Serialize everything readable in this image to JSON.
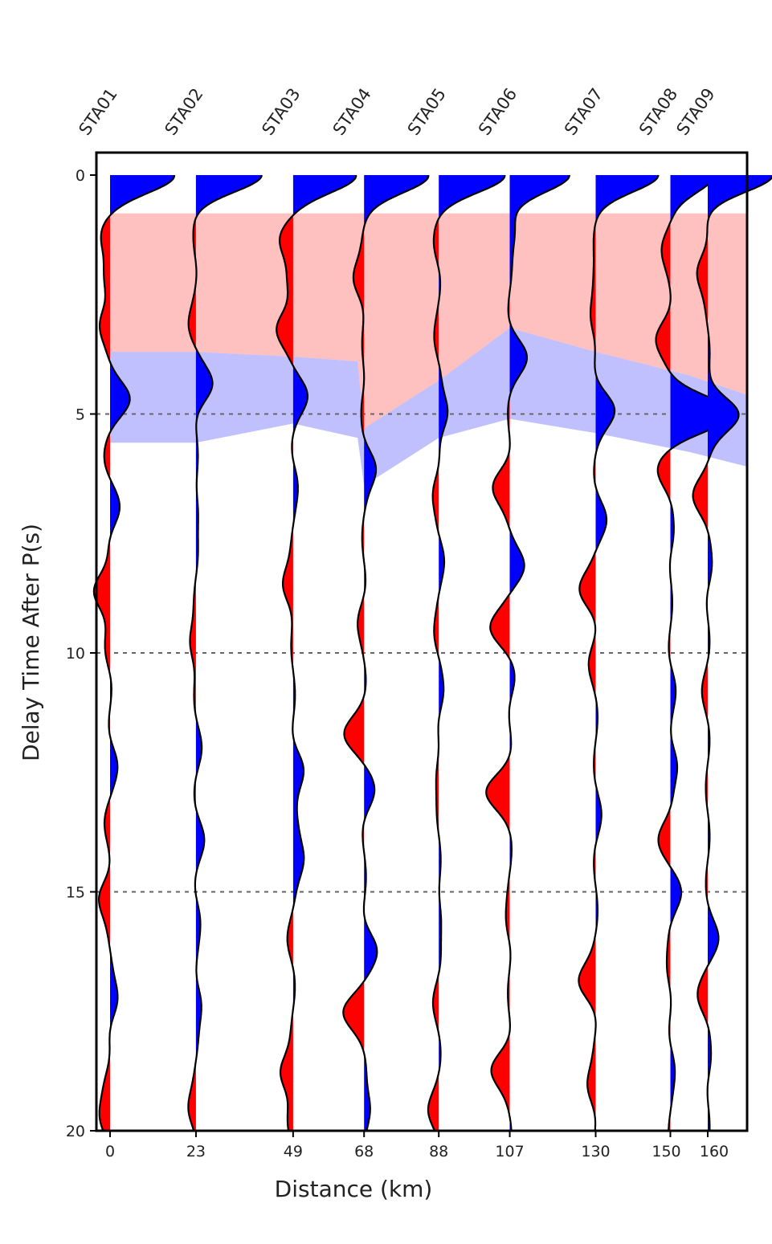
{
  "chart_data": {
    "type": "wiggle-trace",
    "xlabel": "Distance (km)",
    "ylabel": "Delay Time After P(s)",
    "ylim": [
      0,
      20
    ],
    "y_ticks": [
      "0",
      "5",
      "10",
      "15",
      "20"
    ],
    "x_ticks": [
      "0",
      "23",
      "49",
      "68",
      "88",
      "107",
      "130",
      "150",
      "160"
    ],
    "grid": "horizontal dashed at 5, 10, 15",
    "positive_color": "#0000ff",
    "negative_color": "#ff0000",
    "stations": [
      {
        "name": "STA01",
        "distance_km": 0,
        "pulses": [
          [
            0,
            1.0
          ],
          [
            1.2,
            -0.12
          ],
          [
            2.2,
            -0.1
          ],
          [
            3.1,
            -0.15
          ],
          [
            4.7,
            0.28
          ],
          [
            6.0,
            -0.08
          ],
          [
            7.0,
            0.14
          ],
          [
            8.7,
            -0.28
          ],
          [
            10.0,
            -0.06
          ],
          [
            12.3,
            0.1
          ],
          [
            13.5,
            -0.06
          ],
          [
            15.1,
            -0.18
          ],
          [
            17.3,
            0.12
          ],
          [
            19.0,
            -0.1
          ],
          [
            19.7,
            -0.12
          ]
        ]
      },
      {
        "name": "STA02",
        "distance_km": 23,
        "pulses": [
          [
            0,
            1.0
          ],
          [
            1.5,
            -0.05
          ],
          [
            3.2,
            -0.1
          ],
          [
            4.4,
            0.26
          ],
          [
            7.0,
            0.06
          ],
          [
            9.8,
            -0.12
          ],
          [
            12.0,
            0.06
          ],
          [
            13.9,
            0.1
          ],
          [
            15.5,
            0.06
          ],
          [
            17.3,
            0.1
          ],
          [
            19.6,
            -0.12
          ]
        ]
      },
      {
        "name": "STA03",
        "distance_km": 49,
        "pulses": [
          [
            0,
            1.0
          ],
          [
            1.3,
            -0.2
          ],
          [
            2.3,
            -0.08
          ],
          [
            3.2,
            -0.26
          ],
          [
            4.6,
            0.2
          ],
          [
            6.4,
            0.06
          ],
          [
            8.6,
            -0.18
          ],
          [
            12.4,
            0.16
          ],
          [
            13.7,
            0.08
          ],
          [
            14.3,
            0.16
          ],
          [
            16.0,
            -0.06
          ],
          [
            18.8,
            -0.22
          ],
          [
            19.7,
            -0.06
          ]
        ]
      },
      {
        "name": "STA04",
        "distance_km": 68,
        "pulses": [
          [
            0,
            1.0
          ],
          [
            2.2,
            -0.18
          ],
          [
            4.8,
            -0.06
          ],
          [
            6.1,
            0.18
          ],
          [
            9.3,
            -0.08
          ],
          [
            11.7,
            -0.28
          ],
          [
            12.9,
            0.14
          ],
          [
            16.2,
            0.2
          ],
          [
            17.5,
            -0.3
          ],
          [
            19.6,
            0.12
          ]
        ]
      },
      {
        "name": "STA05",
        "distance_km": 88,
        "pulses": [
          [
            0,
            1.0
          ],
          [
            1.5,
            -0.06
          ],
          [
            3.5,
            -0.05
          ],
          [
            5.0,
            0.16
          ],
          [
            6.6,
            -0.1
          ],
          [
            8.0,
            0.06
          ],
          [
            9.7,
            -0.06
          ],
          [
            10.9,
            0.08
          ],
          [
            12.5,
            -0.06
          ],
          [
            15.5,
            0.06
          ],
          [
            17.3,
            -0.06
          ],
          [
            19.6,
            -0.14
          ]
        ]
      },
      {
        "name": "STA06",
        "distance_km": 107,
        "pulses": [
          [
            0,
            0.9
          ],
          [
            1.1,
            0.1
          ],
          [
            3.8,
            0.24
          ],
          [
            6.5,
            -0.26
          ],
          [
            8.2,
            0.2
          ],
          [
            9.5,
            -0.3
          ],
          [
            10.6,
            0.08
          ],
          [
            12.9,
            -0.34
          ],
          [
            15.7,
            -0.06
          ],
          [
            18.7,
            -0.28
          ]
        ]
      },
      {
        "name": "STA07",
        "distance_km": 130,
        "pulses": [
          [
            0,
            1.0
          ],
          [
            1.3,
            -0.06
          ],
          [
            3.0,
            -0.1
          ],
          [
            4.9,
            0.28
          ],
          [
            7.2,
            0.14
          ],
          [
            8.7,
            -0.24
          ],
          [
            10.2,
            -0.08
          ],
          [
            13.4,
            0.06
          ],
          [
            16.9,
            -0.26
          ],
          [
            19.1,
            -0.14
          ]
        ]
      },
      {
        "name": "STA08",
        "distance_km": 150,
        "pulses": [
          [
            0,
            0.7
          ],
          [
            1.5,
            -0.12
          ],
          [
            3.4,
            -0.22
          ],
          [
            5.0,
            0.95
          ],
          [
            6.2,
            -0.18
          ],
          [
            7.6,
            0.06
          ],
          [
            10.7,
            0.06
          ],
          [
            12.3,
            0.12
          ],
          [
            13.9,
            -0.16
          ],
          [
            15.0,
            0.14
          ],
          [
            16.7,
            -0.06
          ],
          [
            18.6,
            0.06
          ]
        ]
      },
      {
        "name": "STA09",
        "distance_km": 160,
        "pulses": [
          [
            0,
            1.0
          ],
          [
            2.0,
            -0.18
          ],
          [
            5.0,
            0.5
          ],
          [
            6.7,
            -0.2
          ],
          [
            8.3,
            0.06
          ],
          [
            10.8,
            -0.06
          ],
          [
            16.0,
            0.14
          ],
          [
            17.2,
            -0.14
          ],
          [
            18.6,
            0.06
          ]
        ]
      }
    ],
    "shaded_zones": [
      {
        "label": "red",
        "color": "#ff9999",
        "top": [
          0.8,
          0.8,
          0.8,
          0.8,
          0.8,
          0.8,
          0.8,
          0.8,
          0.8,
          0.8
        ],
        "bottom": [
          3.7,
          3.7,
          3.8,
          3.9,
          5.3,
          4.3,
          3.2,
          3.7,
          4.2,
          4.6
        ]
      },
      {
        "label": "blue",
        "color": "#9999ff",
        "top": [
          3.7,
          3.7,
          3.8,
          3.9,
          5.3,
          4.3,
          3.2,
          3.7,
          4.2,
          4.6
        ],
        "bottom": [
          5.6,
          5.6,
          5.2,
          5.5,
          6.5,
          5.5,
          5.1,
          5.4,
          5.8,
          6.1
        ]
      }
    ]
  }
}
